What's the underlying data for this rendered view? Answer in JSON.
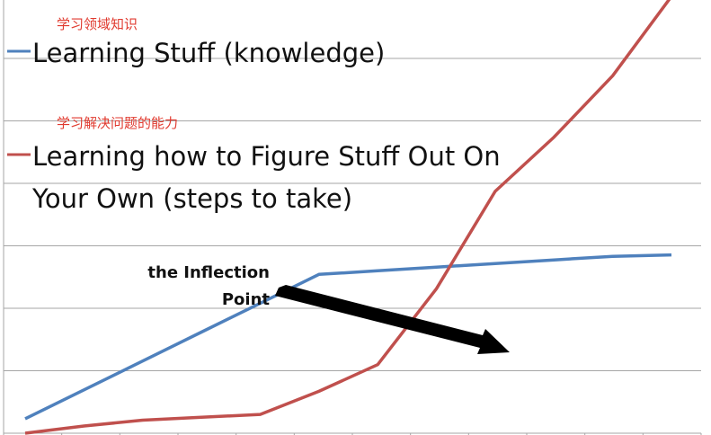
{
  "chart_data": {
    "type": "line",
    "x": [
      1,
      2,
      3,
      4,
      5,
      6,
      7,
      8,
      9,
      10,
      11,
      12
    ],
    "ylim": [
      0,
      6
    ],
    "grid": true,
    "legend_placement": "top-left",
    "series": [
      {
        "name": "Learning Stuff (knowledge)",
        "name_annotation": "学习领域知识",
        "color": "#4f81bd",
        "values": [
          0.2,
          0.6,
          1.0,
          1.4,
          1.8,
          2.2,
          2.25,
          2.3,
          2.35,
          2.4,
          2.45,
          2.47
        ]
      },
      {
        "name": "Learning how to Figure Stuff Out On Your Own (steps to take)",
        "name_lines": [
          "Learning how to Figure Stuff Out On",
          "Your Own (steps to take)"
        ],
        "name_annotation": "学习解决问题的能力",
        "color": "#c0504d",
        "values": [
          0,
          0.1,
          0.18,
          0.22,
          0.26,
          0.58,
          0.95,
          2.0,
          3.35,
          4.1,
          4.95,
          6.05
        ]
      }
    ],
    "annotation": {
      "text_lines": [
        "the Inflection",
        "Point"
      ]
    }
  }
}
